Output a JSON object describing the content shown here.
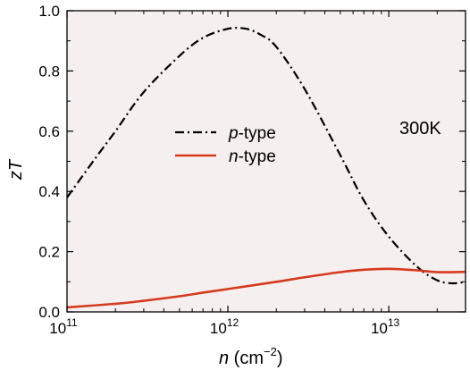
{
  "chart_data": {
    "type": "line",
    "title": "",
    "x_scale": "log",
    "xlim": [
      100000000000.0,
      30000000000000.0
    ],
    "ylim": [
      0.0,
      1.0
    ],
    "xlabel": {
      "italic": "n",
      "rest": " (cm",
      "sup": "−2",
      "close": ")"
    },
    "ylabel": {
      "italic": "zT"
    },
    "x_ticks": [
      {
        "value": 100000000000.0,
        "base": "10",
        "exp": "11"
      },
      {
        "value": 1000000000000.0,
        "base": "10",
        "exp": "12"
      },
      {
        "value": 10000000000000.0,
        "base": "10",
        "exp": "13"
      }
    ],
    "y_ticks": [
      {
        "value": 0.0,
        "label": "0.0"
      },
      {
        "value": 0.2,
        "label": "0.2"
      },
      {
        "value": 0.4,
        "label": "0.4"
      },
      {
        "value": 0.6,
        "label": "0.6"
      },
      {
        "value": 0.8,
        "label": "0.8"
      },
      {
        "value": 1.0,
        "label": "1.0"
      }
    ],
    "grid": false,
    "background": "#f5efef",
    "annotation": "300K",
    "legend_position": "center-left",
    "series": [
      {
        "name": "p-type",
        "name_italic": "p",
        "name_rest": "-type",
        "color": "#000000",
        "style": "dash-dot",
        "x": [
          100000000000.0,
          150000000000.0,
          200000000000.0,
          300000000000.0,
          500000000000.0,
          700000000000.0,
          1000000000000.0,
          1300000000000.0,
          1600000000000.0,
          2000000000000.0,
          3000000000000.0,
          5000000000000.0,
          7000000000000.0,
          10000000000000.0,
          15000000000000.0,
          20000000000000.0,
          25000000000000.0,
          30000000000000.0
        ],
        "y": [
          0.38,
          0.51,
          0.6,
          0.73,
          0.85,
          0.91,
          0.94,
          0.94,
          0.92,
          0.88,
          0.74,
          0.52,
          0.37,
          0.25,
          0.15,
          0.105,
          0.095,
          0.1
        ]
      },
      {
        "name": "n-type",
        "name_italic": "n",
        "name_rest": "-type",
        "color": "#d63a1e",
        "style": "solid",
        "x": [
          100000000000.0,
          200000000000.0,
          300000000000.0,
          500000000000.0,
          700000000000.0,
          1000000000000.0,
          2000000000000.0,
          3000000000000.0,
          5000000000000.0,
          7000000000000.0,
          10000000000000.0,
          15000000000000.0,
          20000000000000.0,
          30000000000000.0
        ],
        "y": [
          0.015,
          0.027,
          0.037,
          0.052,
          0.064,
          0.076,
          0.1,
          0.115,
          0.132,
          0.14,
          0.143,
          0.138,
          0.132,
          0.133
        ]
      }
    ]
  }
}
